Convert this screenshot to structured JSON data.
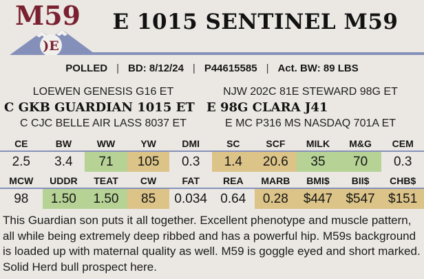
{
  "page": {
    "tag": "M59",
    "title": "E 1015 SENTINEL M59",
    "brand_text": ")E"
  },
  "header": {
    "info_segments": [
      "POLLED",
      "BD: 8/12/24",
      "P44615585",
      "Act. BW: 89 LBS"
    ],
    "info_separator": "|"
  },
  "pedigree": {
    "sire_line": {
      "top": "LOEWEN GENESIS G16 ET",
      "main": "C GKB GUARDIAN 1015 ET",
      "bottom": "C CJC BELLE AIR LASS 8037 ET"
    },
    "dam_line": {
      "top": "NJW 202C 81E STEWARD 98G ET",
      "main": "E 98G CLARA J41",
      "bottom": "E MC P316 MS NASDAQ 701A ET"
    }
  },
  "epd_table": {
    "rows": [
      {
        "headers": [
          "CE",
          "BW",
          "WW",
          "YW",
          "DMI",
          "SC",
          "SCF",
          "MILK",
          "M&G",
          "CEM"
        ],
        "values": [
          "2.5",
          "3.4",
          "71",
          "105",
          "0.3",
          "1.4",
          "20.6",
          "35",
          "70",
          "0.3"
        ],
        "highlights": [
          "none",
          "none",
          "green",
          "tan",
          "none",
          "tan",
          "tan",
          "green",
          "green",
          "none"
        ]
      },
      {
        "headers": [
          "MCW",
          "UDDR",
          "TEAT",
          "CW",
          "FAT",
          "REA",
          "MARB",
          "BMI$",
          "BII$",
          "CHB$"
        ],
        "values": [
          "98",
          "1.50",
          "1.50",
          "85",
          "0.034",
          "0.64",
          "0.28",
          "$447",
          "$547",
          "$151"
        ],
        "highlights": [
          "none",
          "green",
          "green",
          "tan",
          "none",
          "none",
          "tan",
          "tan",
          "tan",
          "tan"
        ]
      }
    ]
  },
  "description": "This Guardian son puts it all together. Excellent phenotype and muscle pattern, all while being extremely deep ribbed and has a powerful hip. M59s background is loaded up with maternal quality as well. M59 is goggle eyed and short marked. Solid Herd bull prospect here.",
  "colors": {
    "maroon": "#7a2131",
    "slate_blue": "#8590ba",
    "highlight_green": "#b6d295",
    "highlight_tan": "#dcc488",
    "page_background": "#ebe8e3"
  }
}
